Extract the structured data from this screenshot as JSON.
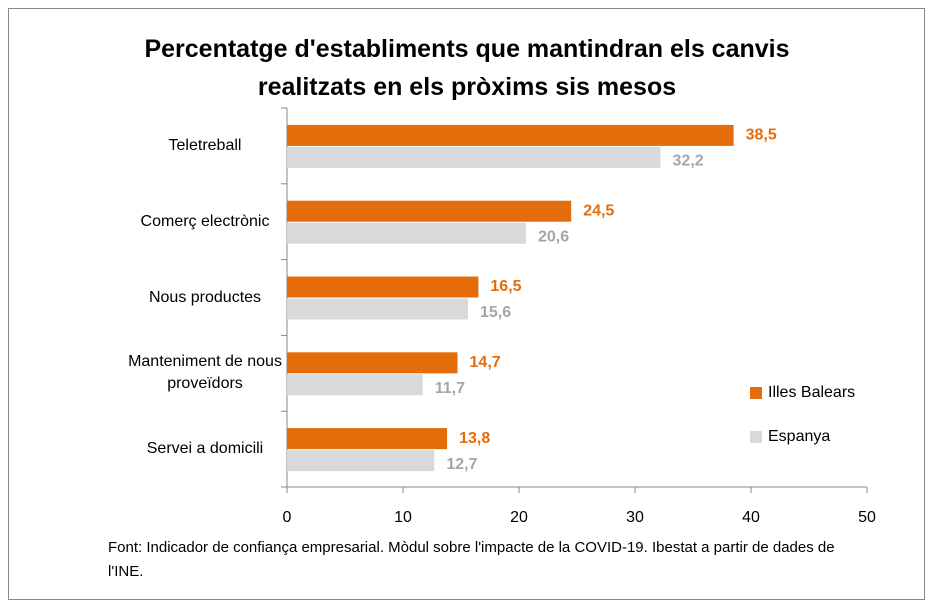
{
  "chart_data": {
    "type": "hbar",
    "title": "Percentatge d'establiments que mantindran els canvis realitzats en els pròxims sis mesos",
    "categories": [
      "Teletreball",
      "Comerç electrònic",
      "Nous productes",
      "Manteniment de nous proveïdors",
      "Servei a domicili"
    ],
    "series": [
      {
        "name": "Illes Balears",
        "color": "#e46c0a",
        "values": [
          38.5,
          24.5,
          16.5,
          14.7,
          13.8
        ],
        "value_labels": [
          "38,5",
          "24,5",
          "16,5",
          "14,7",
          "13,8"
        ]
      },
      {
        "name": "Espanya",
        "color": "#d9d9d9",
        "label_color": "#a6a6a6",
        "values": [
          32.2,
          20.6,
          15.6,
          11.7,
          12.7
        ],
        "value_labels": [
          "32,2",
          "20,6",
          "15,6",
          "11,7",
          "12,7"
        ]
      }
    ],
    "xlim": [
      0,
      50
    ],
    "xticks": [
      0,
      10,
      20,
      30,
      40,
      50
    ],
    "legend": "right",
    "source": "Font: Indicador de confiança empresarial. Mòdul sobre l'impacte de la COVID-19. Ibestat a partir de dades de l'INE."
  }
}
